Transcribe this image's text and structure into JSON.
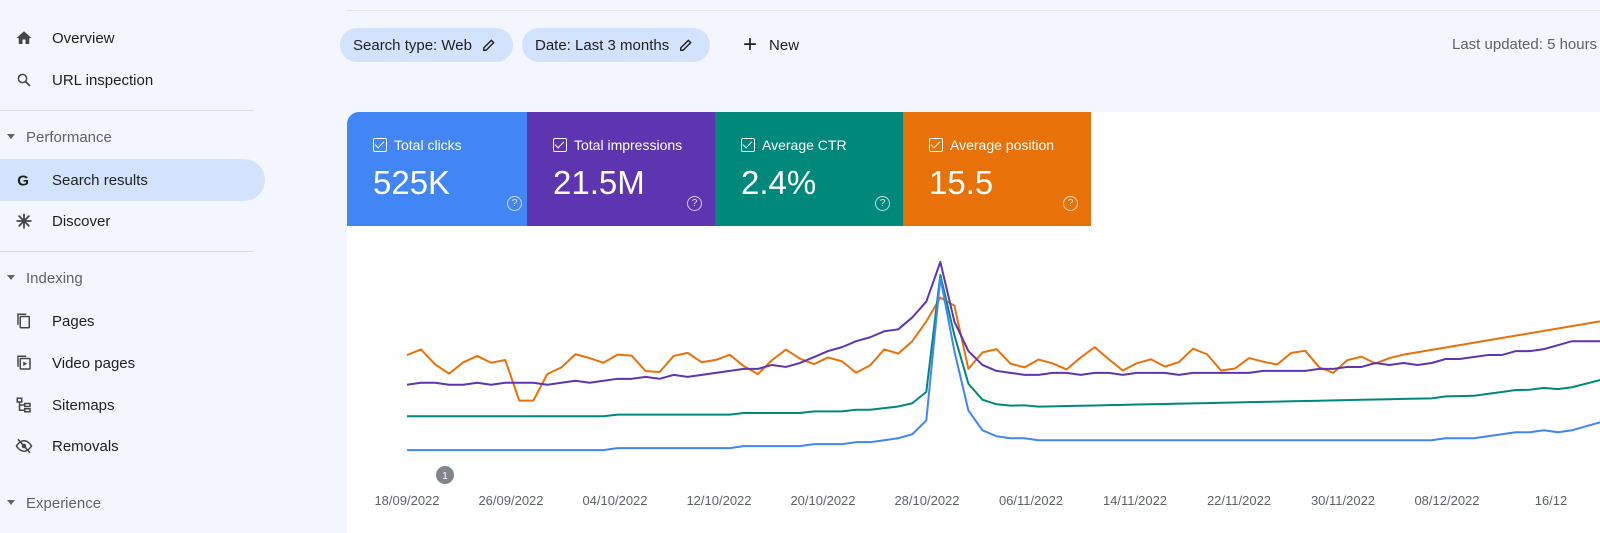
{
  "sidebar": {
    "items": [
      {
        "label": "Overview",
        "icon": "home-icon"
      },
      {
        "label": "URL inspection",
        "icon": "search-icon"
      }
    ],
    "performance": {
      "label": "Performance",
      "items": [
        {
          "label": "Search results",
          "icon": "google-g-icon",
          "active": true
        },
        {
          "label": "Discover",
          "icon": "asterisk-icon"
        }
      ]
    },
    "indexing": {
      "label": "Indexing",
      "items": [
        {
          "label": "Pages",
          "icon": "pages-icon"
        },
        {
          "label": "Video pages",
          "icon": "video-pages-icon"
        },
        {
          "label": "Sitemaps",
          "icon": "sitemap-icon"
        },
        {
          "label": "Removals",
          "icon": "eye-off-icon"
        }
      ]
    },
    "experience": {
      "label": "Experience"
    }
  },
  "toolbar": {
    "search_type": "Search type: Web",
    "date": "Date: Last 3 months",
    "new_label": "New",
    "last_updated": "Last updated: 5 hours"
  },
  "metrics": [
    {
      "label": "Total clicks",
      "value": "525K",
      "color": "#4285f4"
    },
    {
      "label": "Total impressions",
      "value": "21.5M",
      "color": "#5e35b1"
    },
    {
      "label": "Average CTR",
      "value": "2.4%",
      "color": "#00897b"
    },
    {
      "label": "Average position",
      "value": "15.5",
      "color": "#e8710a"
    }
  ],
  "chart_data": {
    "type": "line",
    "x_tick_labels": [
      "18/09/2022",
      "26/09/2022",
      "04/10/2022",
      "12/10/2022",
      "20/10/2022",
      "28/10/2022",
      "06/11/2022",
      "14/11/2022",
      "22/11/2022",
      "30/11/2022",
      "08/12/2022",
      "16/12"
    ],
    "annotation": "1",
    "grid": false,
    "series_colors": {
      "Total clicks": "#4285f4",
      "Total impressions": "#5e35b1",
      "Average CTR": "#00897b",
      "Average position": "#e8710a"
    },
    "normalized_series": {
      "Total clicks": [
        0.05,
        0.05,
        0.05,
        0.05,
        0.05,
        0.05,
        0.05,
        0.05,
        0.05,
        0.05,
        0.05,
        0.05,
        0.05,
        0.05,
        0.05,
        0.06,
        0.06,
        0.06,
        0.06,
        0.06,
        0.06,
        0.06,
        0.06,
        0.06,
        0.07,
        0.07,
        0.07,
        0.07,
        0.07,
        0.08,
        0.08,
        0.08,
        0.09,
        0.09,
        0.1,
        0.11,
        0.13,
        0.2,
        0.92,
        0.55,
        0.25,
        0.15,
        0.12,
        0.11,
        0.11,
        0.1,
        0.1,
        0.1,
        0.1,
        0.1,
        0.1,
        0.1,
        0.1,
        0.1,
        0.1,
        0.1,
        0.1,
        0.1,
        0.1,
        0.1,
        0.1,
        0.1,
        0.1,
        0.1,
        0.1,
        0.1,
        0.1,
        0.1,
        0.1,
        0.1,
        0.1,
        0.1,
        0.1,
        0.1,
        0.11,
        0.11,
        0.11,
        0.12,
        0.13,
        0.14,
        0.14,
        0.15,
        0.14,
        0.15,
        0.17,
        0.19
      ],
      "Total impressions": [
        0.38,
        0.39,
        0.39,
        0.38,
        0.38,
        0.39,
        0.38,
        0.39,
        0.39,
        0.39,
        0.38,
        0.39,
        0.4,
        0.39,
        0.4,
        0.41,
        0.41,
        0.42,
        0.41,
        0.43,
        0.42,
        0.43,
        0.44,
        0.45,
        0.46,
        0.46,
        0.48,
        0.47,
        0.49,
        0.52,
        0.55,
        0.57,
        0.6,
        0.62,
        0.65,
        0.66,
        0.72,
        0.8,
        1.0,
        0.7,
        0.55,
        0.48,
        0.45,
        0.44,
        0.43,
        0.43,
        0.44,
        0.44,
        0.43,
        0.44,
        0.44,
        0.43,
        0.44,
        0.44,
        0.44,
        0.43,
        0.44,
        0.44,
        0.44,
        0.44,
        0.44,
        0.45,
        0.45,
        0.45,
        0.45,
        0.46,
        0.46,
        0.47,
        0.47,
        0.49,
        0.48,
        0.49,
        0.48,
        0.49,
        0.51,
        0.51,
        0.52,
        0.53,
        0.53,
        0.55,
        0.55,
        0.56,
        0.58,
        0.6,
        0.6,
        0.6
      ]
    }
  }
}
